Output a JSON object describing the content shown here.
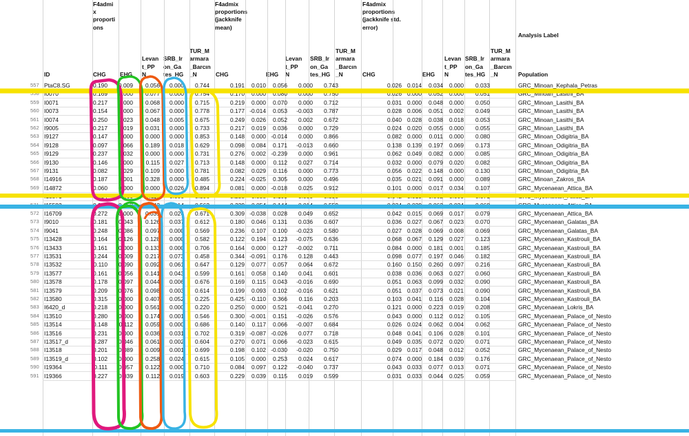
{
  "headers": {
    "group1": [
      "F4admi",
      "x",
      "proporti",
      "ons"
    ],
    "group2": [
      "F4admix",
      "proportions",
      "(jackknife",
      "mean)"
    ],
    "group3": [
      "F4admix",
      "proportions",
      "(jackknife std.",
      "error)"
    ],
    "analysis_label": "Analysis Label",
    "id": "ID",
    "population": "Population",
    "col_chg": [
      "CHG"
    ],
    "col_ehg": [
      "EHG"
    ],
    "col_levant": [
      "Levan",
      "t_PP",
      "N"
    ],
    "col_srb": [
      "SRB_Ir",
      "on_Ga",
      "tes_HG"
    ],
    "col_tur": [
      "TUR_M",
      "armara",
      "_Barcın",
      "_N"
    ]
  },
  "colors": {
    "magenta": "#e0197d",
    "green": "#22c322",
    "orange": "#ee5a12",
    "blue": "#39b3e4",
    "yellow": "#f7e200",
    "cyan": "#3fc3f0"
  },
  "rows": [
    {
      "n": "557",
      "id": "PtaC8.SG",
      "v1": [
        "0.190",
        "0.009",
        "0.056",
        "0.000",
        "0.744"
      ],
      "v2": [
        "0.191",
        "0.010",
        "0.056",
        "0.000",
        "0.743"
      ],
      "v3": [
        "0.026",
        "0.014",
        "0.034",
        "0.000",
        "0.033"
      ],
      "pop": "GRC_Minoan_Kephala_Petras"
    },
    {
      "n": "558",
      "id": "I0070",
      "v1": [
        "0.169",
        "0.000",
        "0.077",
        "0.000",
        "0.754"
      ],
      "v2": [
        "0.170",
        "0.000",
        "0.080",
        "0.000",
        "0.750"
      ],
      "v3": [
        "0.026",
        "0.000",
        "0.052",
        "0.000",
        "0.051"
      ],
      "pop": "GRC_Minoan_Lasithi_BA"
    },
    {
      "n": "559",
      "id": "I0071",
      "v1": [
        "0.217",
        "0.000",
        "0.068",
        "0.000",
        "0.715"
      ],
      "v2": [
        "0.219",
        "0.000",
        "0.070",
        "0.000",
        "0.712"
      ],
      "v3": [
        "0.031",
        "0.000",
        "0.048",
        "0.000",
        "0.050"
      ],
      "pop": "GRC_Minoan_Lasithi_BA"
    },
    {
      "n": "560",
      "id": "I0073",
      "v1": [
        "0.154",
        "0.000",
        "0.067",
        "0.000",
        "0.778"
      ],
      "v2": [
        "0.177",
        "-0.014",
        "0.053",
        "-0.003",
        "0.787"
      ],
      "v3": [
        "0.028",
        "0.006",
        "0.051",
        "0.002",
        "0.049"
      ],
      "pop": "GRC_Minoan_Lasithi_BA"
    },
    {
      "n": "561",
      "id": "I0074",
      "v1": [
        "0.250",
        "0.023",
        "0.048",
        "0.005",
        "0.675"
      ],
      "v2": [
        "0.249",
        "0.026",
        "0.052",
        "0.002",
        "0.672"
      ],
      "v3": [
        "0.040",
        "0.028",
        "0.038",
        "0.018",
        "0.053"
      ],
      "pop": "GRC_Minoan_Lasithi_BA"
    },
    {
      "n": "562",
      "id": "I9005",
      "v1": [
        "0.217",
        "0.019",
        "0.031",
        "0.000",
        "0.733"
      ],
      "v2": [
        "0.217",
        "0.019",
        "0.036",
        "0.000",
        "0.729"
      ],
      "v3": [
        "0.024",
        "0.020",
        "0.055",
        "0.000",
        "0.055"
      ],
      "pop": "GRC_Minoan_Lasithi_BA"
    },
    {
      "n": "563",
      "id": "I9127",
      "v1": [
        "0.147",
        "0.000",
        "0.000",
        "0.000",
        "0.853"
      ],
      "v2": [
        "0.148",
        "0.000",
        "-0.014",
        "0.000",
        "0.866"
      ],
      "v3": [
        "0.082",
        "0.000",
        "0.011",
        "0.000",
        "0.080"
      ],
      "pop": "GRC_Minoan_Odigitria_BA"
    },
    {
      "n": "564",
      "id": "I9128",
      "v1": [
        "0.097",
        "0.066",
        "0.189",
        "0.018",
        "0.629"
      ],
      "v2": [
        "0.098",
        "0.084",
        "0.171",
        "-0.013",
        "0.660"
      ],
      "v3": [
        "0.138",
        "0.139",
        "0.197",
        "0.069",
        "0.173"
      ],
      "pop": "GRC_Minoan_Odigitria_BA"
    },
    {
      "n": "565",
      "id": "I9129",
      "v1": [
        "0.237",
        "0.032",
        "0.000",
        "0.000",
        "0.731"
      ],
      "v2": [
        "0.276",
        "0.002",
        "-0.239",
        "0.000",
        "0.961"
      ],
      "v3": [
        "0.062",
        "0.049",
        "0.082",
        "0.000",
        "0.085"
      ],
      "pop": "GRC_Minoan_Odigitria_BA"
    },
    {
      "n": "566",
      "id": "I9130",
      "v1": [
        "0.146",
        "0.000",
        "0.115",
        "0.027",
        "0.713"
      ],
      "v2": [
        "0.148",
        "0.000",
        "0.112",
        "0.027",
        "0.714"
      ],
      "v3": [
        "0.032",
        "0.000",
        "0.079",
        "0.020",
        "0.082"
      ],
      "pop": "GRC_Minoan_Odigitria_BA"
    },
    {
      "n": "567",
      "id": "I9131",
      "v1": [
        "0.082",
        "0.029",
        "0.109",
        "0.000",
        "0.781"
      ],
      "v2": [
        "0.082",
        "0.029",
        "0.116",
        "0.000",
        "0.773"
      ],
      "v3": [
        "0.056",
        "0.022",
        "0.148",
        "0.000",
        "0.130"
      ],
      "pop": "GRC_Minoan_Odigitria_BA"
    },
    {
      "n": "568",
      "id": "I14916",
      "v1": [
        "0.187",
        "0.001",
        "0.328",
        "0.000",
        "0.485"
      ],
      "v2": [
        "0.224",
        "-0.025",
        "0.305",
        "0.000",
        "0.496"
      ],
      "v3": [
        "0.035",
        "0.021",
        "0.091",
        "0.000",
        "0.089"
      ],
      "pop": "GRC_Minoan_Zakros_BA"
    },
    {
      "n": "569",
      "id": "I14872",
      "v1": [
        "0.060",
        "0.000",
        "0.000",
        "0.026",
        "0.894"
      ],
      "v2": [
        "0.081",
        "0.000",
        "-0.018",
        "0.025",
        "0.912"
      ],
      "v3": [
        "0.101",
        "0.000",
        "0.017",
        "0.034",
        "0.107"
      ],
      "pop": "GRC_Mycenaean_Attica_BA"
    },
    {
      "n": "570",
      "id": "I15571",
      "v1": [
        "0.234",
        "0.060",
        "0.110",
        "0.000",
        "0.596"
      ],
      "v2": [
        "0.238",
        "0.058",
        "0.109",
        "0.000",
        "0.595"
      ],
      "v3": [
        "0.042",
        "0.019",
        "0.062",
        "0.000",
        "0.071"
      ],
      "pop": "GRC_Mycenaean_Attica_BA"
    },
    {
      "n": "571",
      "id": "I15582",
      "v1": [
        "0.229",
        "0.053",
        "0.142",
        "0.014",
        "0.562"
      ],
      "v2": [
        "0.229",
        "0.054",
        "0.144",
        "0.014",
        "0.559"
      ],
      "v3": [
        "0.034",
        "0.029",
        "0.062",
        "0.024",
        "0.068"
      ],
      "pop": "GRC_Mycenaean_Attica_BA"
    },
    {
      "n": "572",
      "id": "I16709",
      "v1": [
        "0.272",
        "0.000",
        "0.031",
        "0.026",
        "0.671"
      ],
      "v2": [
        "0.309",
        "-0.038",
        "0.028",
        "0.049",
        "0.652"
      ],
      "v3": [
        "0.042",
        "0.015",
        "0.069",
        "0.017",
        "0.079"
      ],
      "pop": "GRC_Mycenaean_Attica_BA"
    },
    {
      "n": "573",
      "id": "I9010",
      "v1": [
        "0.181",
        "0.043",
        "0.126",
        "0.037",
        "0.612"
      ],
      "v2": [
        "0.180",
        "0.046",
        "0.131",
        "0.036",
        "0.607"
      ],
      "v3": [
        "0.036",
        "0.027",
        "0.067",
        "0.023",
        "0.070"
      ],
      "pop": "GRC_Mycenaean_Galatas_BA"
    },
    {
      "n": "574",
      "id": "I9041",
      "v1": [
        "0.248",
        "0.086",
        "0.097",
        "0.000",
        "0.569"
      ],
      "v2": [
        "0.236",
        "0.107",
        "0.100",
        "-0.023",
        "0.580"
      ],
      "v3": [
        "0.027",
        "0.028",
        "0.069",
        "0.008",
        "0.069"
      ],
      "pop": "GRC_Mycenaean_Galatas_BA"
    },
    {
      "n": "575",
      "id": "I13428",
      "v1": [
        "0.164",
        "0.126",
        "0.128",
        "0.000",
        "0.582"
      ],
      "v2": [
        "0.122",
        "0.194",
        "0.123",
        "-0.075",
        "0.636"
      ],
      "v3": [
        "0.068",
        "0.067",
        "0.129",
        "0.027",
        "0.123"
      ],
      "pop": "GRC_Mycenaean_Kastrouli_BA"
    },
    {
      "n": "576",
      "id": "I13433",
      "v1": [
        "0.161",
        "0.000",
        "0.133",
        "0.000",
        "0.706"
      ],
      "v2": [
        "0.164",
        "0.000",
        "0.127",
        "-0.002",
        "0.711"
      ],
      "v3": [
        "0.084",
        "0.000",
        "0.181",
        "0.001",
        "0.185"
      ],
      "pop": "GRC_Mycenaean_Kastrouli_BA"
    },
    {
      "n": "577",
      "id": "I13531",
      "v1": [
        "0.244",
        "0.009",
        "0.217",
        "0.073",
        "0.458"
      ],
      "v2": [
        "0.344",
        "-0.091",
        "0.176",
        "0.128",
        "0.443"
      ],
      "v3": [
        "0.098",
        "0.077",
        "0.197",
        "0.046",
        "0.182"
      ],
      "pop": "GRC_Mycenaean_Kastrouli_BA"
    },
    {
      "n": "578",
      "id": "I13532",
      "v1": [
        "0.110",
        "0.090",
        "0.092",
        "0.061",
        "0.647"
      ],
      "v2": [
        "0.129",
        "0.077",
        "0.057",
        "0.064",
        "0.672"
      ],
      "v3": [
        "0.160",
        "0.150",
        "0.260",
        "0.097",
        "0.216"
      ],
      "pop": "GRC_Mycenaean_Kastrouli_BA"
    },
    {
      "n": "579",
      "id": "I13577",
      "v1": [
        "0.161",
        "0.056",
        "0.141",
        "0.043",
        "0.599"
      ],
      "v2": [
        "0.161",
        "0.058",
        "0.140",
        "0.041",
        "0.601"
      ],
      "v3": [
        "0.038",
        "0.036",
        "0.063",
        "0.027",
        "0.060"
      ],
      "pop": "GRC_Mycenaean_Kastrouli_BA"
    },
    {
      "n": "580",
      "id": "I13578",
      "v1": [
        "0.178",
        "0.097",
        "0.044",
        "0.006",
        "0.676"
      ],
      "v2": [
        "0.169",
        "0.115",
        "0.043",
        "-0.016",
        "0.690"
      ],
      "v3": [
        "0.051",
        "0.063",
        "0.099",
        "0.032",
        "0.090"
      ],
      "pop": "GRC_Mycenaean_Kastrouli_BA"
    },
    {
      "n": "581",
      "id": "I13579",
      "v1": [
        "0.209",
        "0.076",
        "0.098",
        "0.003",
        "0.614"
      ],
      "v2": [
        "0.199",
        "0.093",
        "0.102",
        "-0.016",
        "0.621"
      ],
      "v3": [
        "0.051",
        "0.037",
        "0.073",
        "0.021",
        "0.090"
      ],
      "pop": "GRC_Mycenaean_Kastrouli_BA"
    },
    {
      "n": "582",
      "id": "I13580",
      "v1": [
        "0.315",
        "0.000",
        "0.407",
        "0.052",
        "0.225"
      ],
      "v2": [
        "0.425",
        "-0.110",
        "0.366",
        "0.116",
        "0.203"
      ],
      "v3": [
        "0.103",
        "0.041",
        "0.116",
        "0.028",
        "0.104"
      ],
      "pop": "GRC_Mycenaean_Kastrouli_BA"
    },
    {
      "n": "583",
      "id": "I6420_d",
      "v1": [
        "0.218",
        "0.000",
        "0.561",
        "0.000",
        "0.220"
      ],
      "v2": [
        "0.250",
        "0.000",
        "0.521",
        "-0.041",
        "0.270"
      ],
      "v3": [
        "0.121",
        "0.000",
        "0.223",
        "0.019",
        "0.208"
      ],
      "pop": "GRC_Mycenaean_Lokris_BA"
    },
    {
      "n": "584",
      "id": "I13510",
      "v1": [
        "0.280",
        "0.000",
        "0.174",
        "0.001",
        "0.546"
      ],
      "v2": [
        "0.300",
        "-0.001",
        "0.151",
        "-0.026",
        "0.576"
      ],
      "v3": [
        "0.043",
        "0.000",
        "0.112",
        "0.012",
        "0.105"
      ],
      "pop": "GRC_Mycenaean_Palace_of_Nesto"
    },
    {
      "n": "585",
      "id": "I13514",
      "v1": [
        "0.148",
        "0.112",
        "0.059",
        "0.000",
        "0.686"
      ],
      "v2": [
        "0.140",
        "0.117",
        "0.066",
        "-0.007",
        "0.684"
      ],
      "v3": [
        "0.026",
        "0.024",
        "0.062",
        "0.004",
        "0.062"
      ],
      "pop": "GRC_Mycenaean_Palace_of_Nesto"
    },
    {
      "n": "586",
      "id": "I13516",
      "v1": [
        "0.231",
        "0.000",
        "0.036",
        "0.031",
        "0.702"
      ],
      "v2": [
        "0.319",
        "-0.087",
        "-0.026",
        "0.077",
        "0.718"
      ],
      "v3": [
        "0.048",
        "0.041",
        "0.106",
        "0.028",
        "0.101"
      ],
      "pop": "GRC_Mycenaean_Palace_of_Nesto"
    },
    {
      "n": "587",
      "id": "I13517_d",
      "v1": [
        "0.287",
        "0.046",
        "0.061",
        "0.002",
        "0.604"
      ],
      "v2": [
        "0.270",
        "0.071",
        "0.066",
        "-0.023",
        "0.615"
      ],
      "v3": [
        "0.049",
        "0.035",
        "0.072",
        "0.020",
        "0.071"
      ],
      "pop": "GRC_Mycenaean_Palace_of_Nesto"
    },
    {
      "n": "588",
      "id": "I13518",
      "v1": [
        "0.201",
        "0.089",
        "0.009",
        "0.001",
        "0.699"
      ],
      "v2": [
        "0.198",
        "0.102",
        "-0.030",
        "-0.020",
        "0.750"
      ],
      "v3": [
        "0.029",
        "0.017",
        "0.048",
        "0.012",
        "0.052"
      ],
      "pop": "GRC_Mycenaean_Palace_of_Nesto"
    },
    {
      "n": "589",
      "id": "I13519_d",
      "v1": [
        "0.102",
        "0.000",
        "0.258",
        "0.024",
        "0.615"
      ],
      "v2": [
        "0.105",
        "0.000",
        "0.253",
        "0.024",
        "0.617"
      ],
      "v3": [
        "0.074",
        "0.000",
        "0.184",
        "0.039",
        "0.176"
      ],
      "pop": "GRC_Mycenaean_Palace_of_Nesto"
    },
    {
      "n": "590",
      "id": "I19364",
      "v1": [
        "0.111",
        "0.057",
        "0.122",
        "0.000",
        "0.710"
      ],
      "v2": [
        "0.084",
        "0.097",
        "0.122",
        "-0.040",
        "0.737"
      ],
      "v3": [
        "0.043",
        "0.033",
        "0.077",
        "0.013",
        "0.071"
      ],
      "pop": "GRC_Mycenaean_Palace_of_Nesto"
    },
    {
      "n": "591",
      "id": "I19366",
      "v1": [
        "0.227",
        "0.039",
        "0.112",
        "0.019",
        "0.603"
      ],
      "v2": [
        "0.229",
        "0.039",
        "0.115",
        "0.019",
        "0.599"
      ],
      "v3": [
        "0.031",
        "0.033",
        "0.044",
        "0.025",
        "0.059"
      ],
      "pop": "GRC_Mycenaean_Palace_of_Nesto"
    }
  ]
}
